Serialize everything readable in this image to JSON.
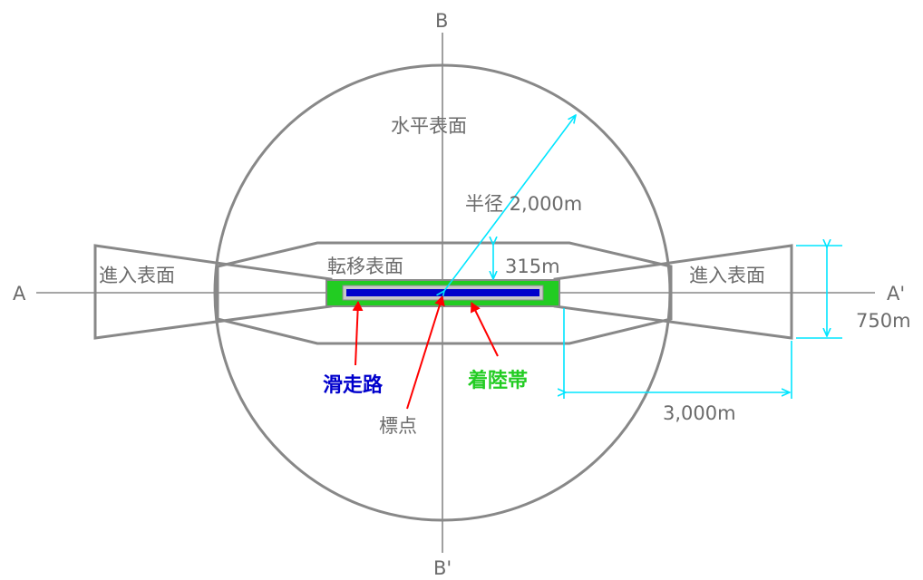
{
  "labels": {
    "axis_b_top": "B",
    "axis_b_bottom": "B'",
    "axis_a_left": "A",
    "axis_a_right": "A'",
    "horizontal_surface": "水平表面",
    "radius": "半径 2,000m",
    "transitional_surface": "転移表面",
    "height_315": "315m",
    "approach_left": "進入表面",
    "approach_right": "進入表面",
    "width_750": "750m",
    "length_3000": "3,000m",
    "runway": "滑走路",
    "landing_strip": "着陸帯",
    "reference_point": "標点"
  },
  "colors": {
    "outline": "#888888",
    "dimension": "#00e5ff",
    "pointer": "#ff0000",
    "runway": "#0000cc",
    "landing_strip": "#22cc22"
  }
}
